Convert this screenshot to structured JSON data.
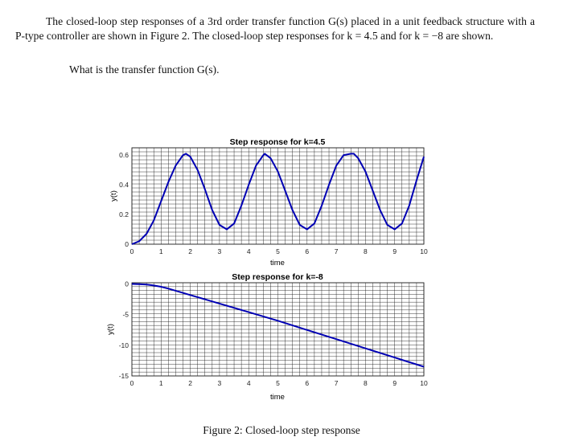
{
  "problem": {
    "paragraph": "The closed-loop step responses of a 3rd order transfer function G(s) placed in a unit feedback structure with a P-type controller are shown in Figure 2. The closed-loop step responses for k = 4.5 and for k = −8 are shown.",
    "question": "What is the transfer function G(s)."
  },
  "figure": {
    "caption": "Figure 2: Closed-loop step response"
  },
  "chart_data": [
    {
      "type": "line",
      "title": "Step response for k=4.5",
      "xlabel": "time",
      "ylabel": "y(t)",
      "xlim": [
        0,
        10
      ],
      "ylim": [
        0,
        0.65
      ],
      "xticks": [
        "0",
        "1",
        "2",
        "3",
        "4",
        "5",
        "6",
        "7",
        "8",
        "9",
        "10"
      ],
      "yticks": [
        "0",
        "0.2",
        "0.4",
        "0.6"
      ],
      "ytick_values": [
        0,
        0.2,
        0.4,
        0.6
      ],
      "grid": true,
      "line_color": "#0000b4",
      "series": [
        {
          "x": [
            0,
            0.25,
            0.5,
            0.75,
            1.0,
            1.25,
            1.5,
            1.75,
            1.85,
            2.0,
            2.25,
            2.5,
            2.75,
            3.0,
            3.25,
            3.5,
            3.75,
            4.0,
            4.25,
            4.5,
            4.55,
            4.75,
            5.0,
            5.25,
            5.5,
            5.75,
            6.0,
            6.25,
            6.5,
            6.75,
            7.0,
            7.25,
            7.5,
            7.6,
            7.75,
            8.0,
            8.25,
            8.5,
            8.75,
            9.0,
            9.25,
            9.5,
            9.75,
            10.0
          ],
          "y": [
            0,
            0.02,
            0.07,
            0.16,
            0.29,
            0.42,
            0.53,
            0.6,
            0.61,
            0.59,
            0.5,
            0.37,
            0.23,
            0.13,
            0.1,
            0.14,
            0.26,
            0.4,
            0.53,
            0.6,
            0.61,
            0.58,
            0.49,
            0.36,
            0.23,
            0.13,
            0.1,
            0.14,
            0.26,
            0.4,
            0.53,
            0.6,
            0.61,
            0.61,
            0.58,
            0.49,
            0.36,
            0.23,
            0.13,
            0.1,
            0.14,
            0.26,
            0.43,
            0.59
          ]
        }
      ]
    },
    {
      "type": "line",
      "title": "Step response for k=-8",
      "xlabel": "time",
      "ylabel": "y(t)",
      "xlim": [
        0,
        10
      ],
      "ylim": [
        -15,
        0.2
      ],
      "xticks": [
        "0",
        "1",
        "2",
        "3",
        "4",
        "5",
        "6",
        "7",
        "8",
        "9",
        "10"
      ],
      "yticks": [
        "0",
        "-5",
        "-10",
        "-15"
      ],
      "ytick_values": [
        0,
        -5,
        -10,
        -15
      ],
      "grid": true,
      "line_color": "#0000b4",
      "series": [
        {
          "x": [
            0,
            0.25,
            0.5,
            0.75,
            1.0,
            1.25,
            1.5,
            2.0,
            3.0,
            4.0,
            5.0,
            6.0,
            7.0,
            8.0,
            9.0,
            10.0
          ],
          "y": [
            0,
            -0.03,
            -0.1,
            -0.25,
            -0.45,
            -0.75,
            -1.1,
            -1.8,
            -3.2,
            -4.6,
            -6.0,
            -7.5,
            -9.0,
            -10.5,
            -12.0,
            -13.5
          ]
        }
      ]
    }
  ]
}
